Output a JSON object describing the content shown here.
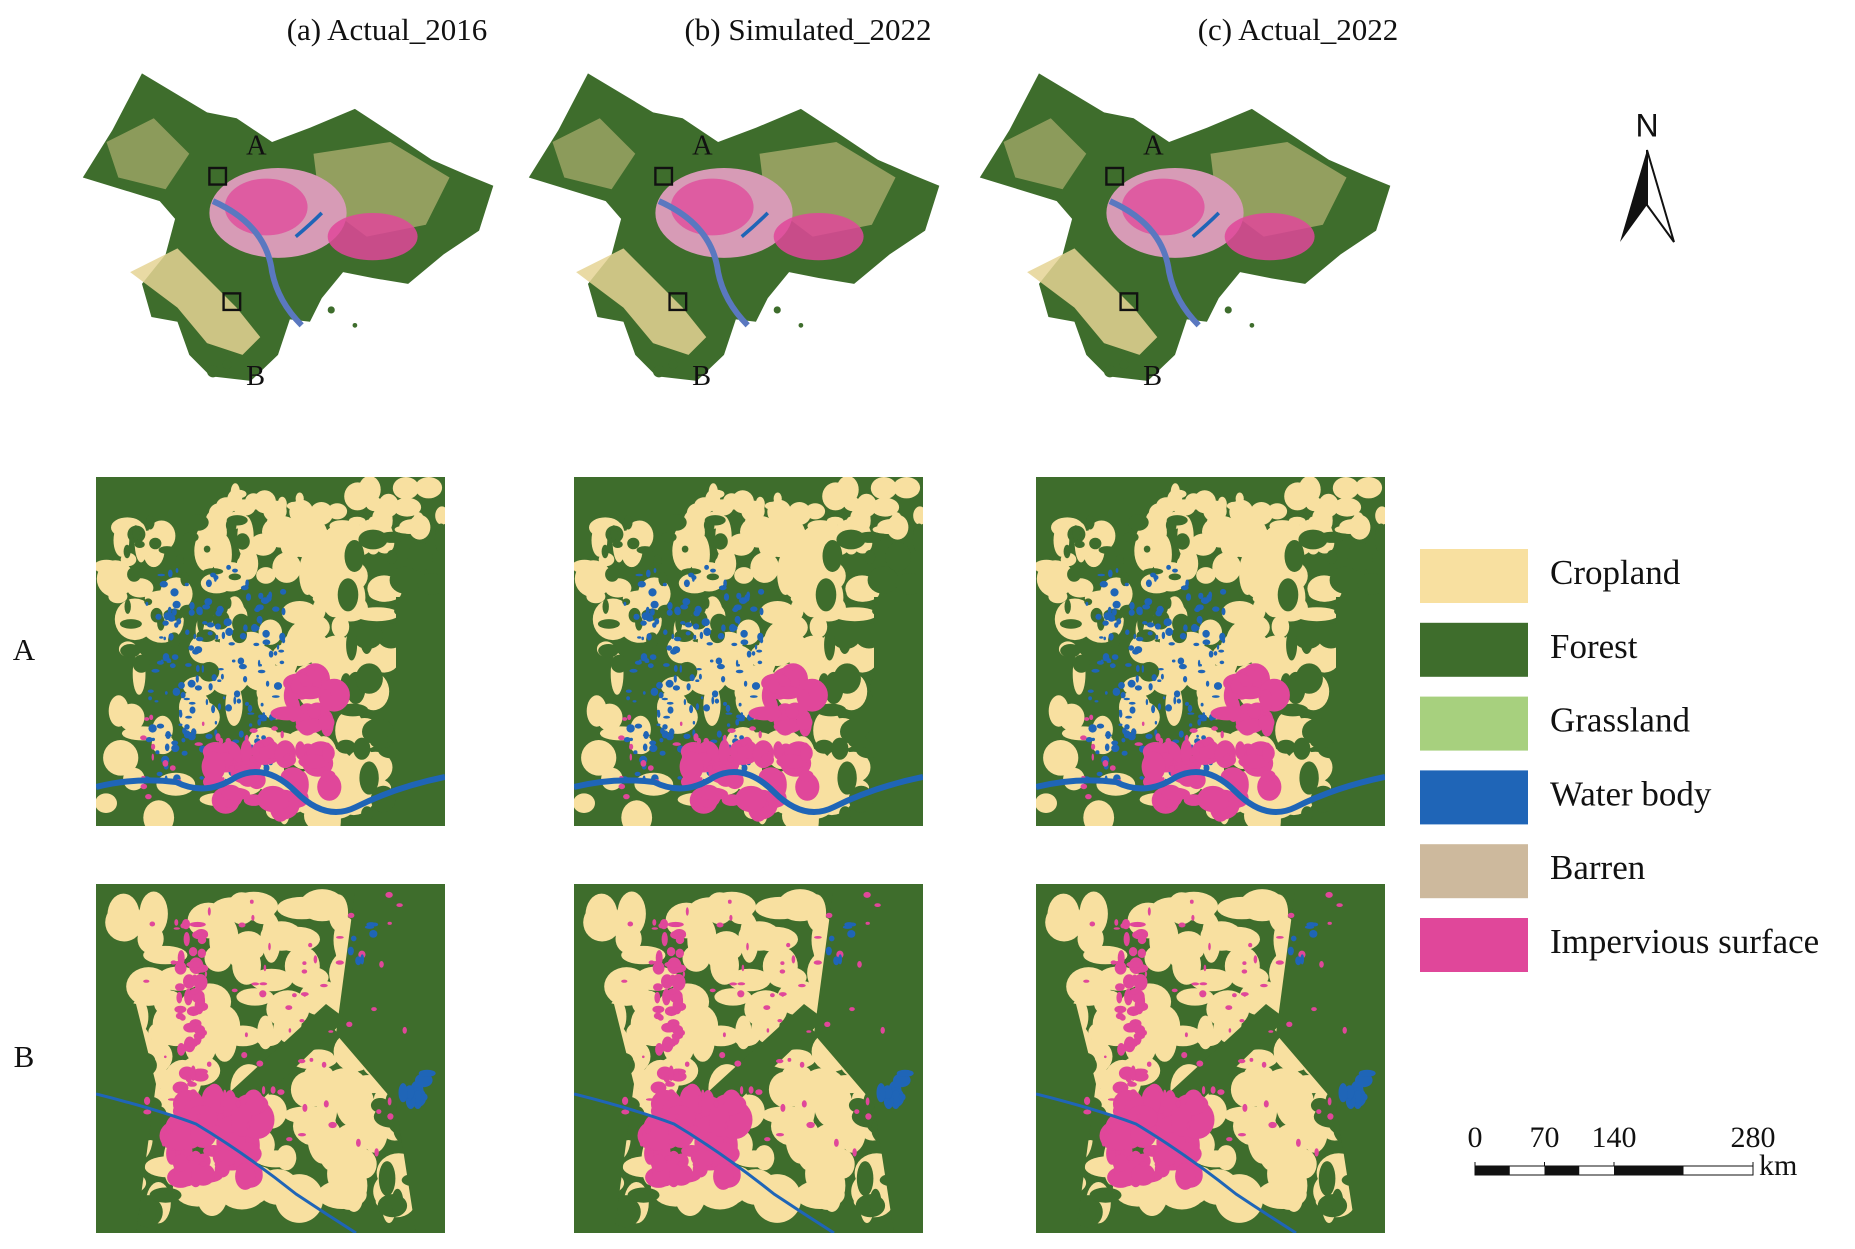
{
  "panels": [
    {
      "title": "(a) Actual_2016"
    },
    {
      "title": "(b) Simulated_2022"
    },
    {
      "title": "(c) Actual_2022"
    }
  ],
  "overview_labels": [
    "A",
    "B"
  ],
  "rows": [
    "A",
    "B"
  ],
  "legend": [
    {
      "name": "Cropland",
      "color": "#f8e0a0"
    },
    {
      "name": "Forest",
      "color": "#3e6d2c"
    },
    {
      "name": "Grassland",
      "color": "#a7d07e"
    },
    {
      "name": "Water body",
      "color": "#1f65b7"
    },
    {
      "name": "Barren",
      "color": "#cdb99d"
    },
    {
      "name": "Impervious surface",
      "color": "#e0479a"
    }
  ],
  "north_arrow": "N",
  "scale_bar": {
    "ticks": [
      0,
      70,
      140,
      280
    ],
    "unit": "km"
  }
}
